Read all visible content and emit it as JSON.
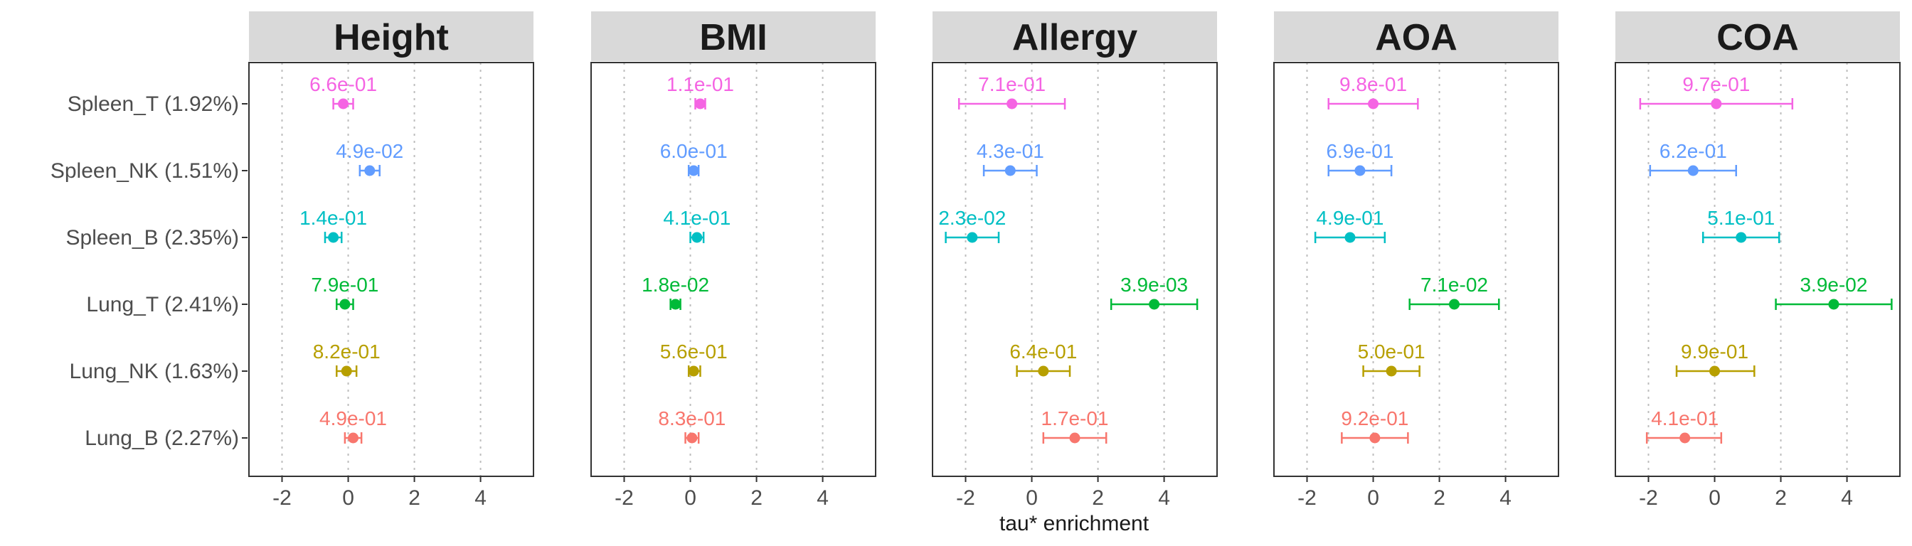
{
  "chart_data": {
    "type": "forest",
    "xlabel": "tau* enrichment",
    "xlim": [
      -3,
      5.6
    ],
    "xticks": [
      -2,
      0,
      2,
      4
    ],
    "grid": "vertical dotted",
    "categories": [
      "Spleen_T (1.92%)",
      "Spleen_NK (1.51%)",
      "Spleen_B (2.35%)",
      "Lung_T (2.41%)",
      "Lung_NK (1.63%)",
      "Lung_B (2.27%)"
    ],
    "colors": [
      "#F564E3",
      "#619CFF",
      "#00BFC4",
      "#00BA38",
      "#B79F00",
      "#F8766D"
    ],
    "panels": [
      {
        "title": "Height",
        "points": [
          {
            "est": -0.15,
            "lo": -0.45,
            "hi": 0.15,
            "label": "6.6e-01"
          },
          {
            "est": 0.65,
            "lo": 0.35,
            "hi": 0.95,
            "label": "4.9e-02"
          },
          {
            "est": -0.45,
            "lo": -0.7,
            "hi": -0.2,
            "label": "1.4e-01"
          },
          {
            "est": -0.1,
            "lo": -0.35,
            "hi": 0.15,
            "label": "7.9e-01"
          },
          {
            "est": -0.05,
            "lo": -0.35,
            "hi": 0.25,
            "label": "8.2e-01"
          },
          {
            "est": 0.15,
            "lo": -0.1,
            "hi": 0.4,
            "label": "4.9e-01"
          }
        ]
      },
      {
        "title": "BMI",
        "points": [
          {
            "est": 0.3,
            "lo": 0.15,
            "hi": 0.45,
            "label": "1.1e-01"
          },
          {
            "est": 0.1,
            "lo": -0.05,
            "hi": 0.25,
            "label": "6.0e-01"
          },
          {
            "est": 0.2,
            "lo": 0.0,
            "hi": 0.4,
            "label": "4.1e-01"
          },
          {
            "est": -0.45,
            "lo": -0.6,
            "hi": -0.3,
            "label": "1.8e-02"
          },
          {
            "est": 0.1,
            "lo": -0.05,
            "hi": 0.3,
            "label": "5.6e-01"
          },
          {
            "est": 0.05,
            "lo": -0.15,
            "hi": 0.25,
            "label": "8.3e-01"
          }
        ]
      },
      {
        "title": "Allergy",
        "points": [
          {
            "est": -0.6,
            "lo": -2.2,
            "hi": 1.0,
            "label": "7.1e-01"
          },
          {
            "est": -0.65,
            "lo": -1.45,
            "hi": 0.15,
            "label": "4.3e-01"
          },
          {
            "est": -1.8,
            "lo": -2.6,
            "hi": -1.0,
            "label": "2.3e-02"
          },
          {
            "est": 3.7,
            "lo": 2.4,
            "hi": 5.0,
            "label": "3.9e-03"
          },
          {
            "est": 0.35,
            "lo": -0.45,
            "hi": 1.15,
            "label": "6.4e-01"
          },
          {
            "est": 1.3,
            "lo": 0.35,
            "hi": 2.25,
            "label": "1.7e-01"
          }
        ]
      },
      {
        "title": "AOA",
        "points": [
          {
            "est": 0.0,
            "lo": -1.35,
            "hi": 1.35,
            "label": "9.8e-01"
          },
          {
            "est": -0.4,
            "lo": -1.35,
            "hi": 0.55,
            "label": "6.9e-01"
          },
          {
            "est": -0.7,
            "lo": -1.75,
            "hi": 0.35,
            "label": "4.9e-01"
          },
          {
            "est": 2.45,
            "lo": 1.1,
            "hi": 3.8,
            "label": "7.1e-02"
          },
          {
            "est": 0.55,
            "lo": -0.3,
            "hi": 1.4,
            "label": "5.0e-01"
          },
          {
            "est": 0.05,
            "lo": -0.95,
            "hi": 1.05,
            "label": "9.2e-01"
          }
        ]
      },
      {
        "title": "COA",
        "points": [
          {
            "est": 0.05,
            "lo": -2.25,
            "hi": 2.35,
            "label": "9.7e-01"
          },
          {
            "est": -0.65,
            "lo": -1.95,
            "hi": 0.65,
            "label": "6.2e-01"
          },
          {
            "est": 0.8,
            "lo": -0.35,
            "hi": 1.95,
            "label": "5.1e-01"
          },
          {
            "est": 3.6,
            "lo": 1.85,
            "hi": 5.35,
            "label": "3.9e-02"
          },
          {
            "est": 0.0,
            "lo": -1.15,
            "hi": 1.2,
            "label": "9.9e-01"
          },
          {
            "est": -0.9,
            "lo": -2.05,
            "hi": 0.2,
            "label": "4.1e-01"
          }
        ]
      }
    ]
  }
}
